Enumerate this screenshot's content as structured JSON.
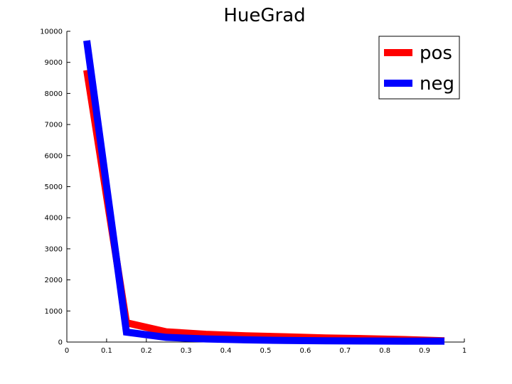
{
  "chart_data": {
    "type": "line",
    "title": "HueGrad",
    "xlabel": "",
    "ylabel": "",
    "xlim": [
      0,
      1
    ],
    "ylim": [
      0,
      10000
    ],
    "xticks": [
      "0",
      "0.1",
      "0.2",
      "0.3",
      "0.4",
      "0.5",
      "0.6",
      "0.7",
      "0.8",
      "0.9",
      "1"
    ],
    "yticks": [
      "0",
      "1000",
      "2000",
      "3000",
      "4000",
      "5000",
      "6000",
      "7000",
      "8000",
      "9000",
      "10000"
    ],
    "grid": false,
    "legend_position": "top-right",
    "series": [
      {
        "name": "pos",
        "color": "#ff0000",
        "x": [
          0.05,
          0.15,
          0.25,
          0.35,
          0.45,
          0.55,
          0.65,
          0.75,
          0.85,
          0.95
        ],
        "y": [
          8750,
          620,
          330,
          250,
          200,
          170,
          130,
          110,
          80,
          40
        ]
      },
      {
        "name": "neg",
        "color": "#0000ff",
        "x": [
          0.05,
          0.15,
          0.25,
          0.35,
          0.45,
          0.55,
          0.65,
          0.75,
          0.85,
          0.95
        ],
        "y": [
          9700,
          320,
          150,
          100,
          70,
          50,
          40,
          35,
          30,
          30
        ]
      }
    ]
  }
}
